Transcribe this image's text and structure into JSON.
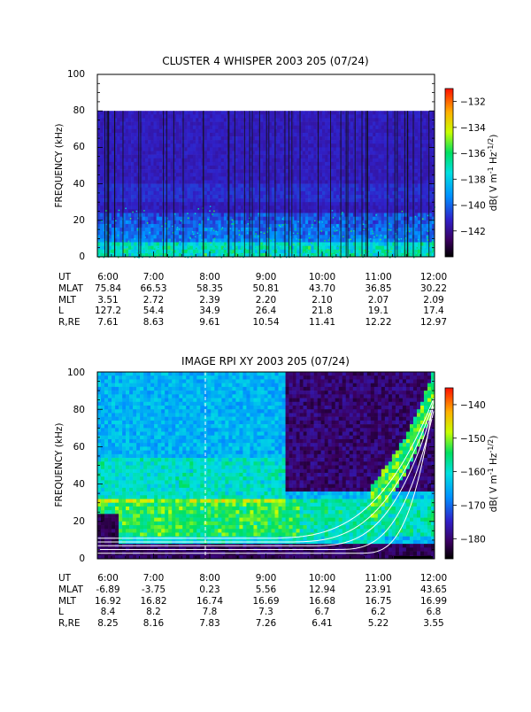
{
  "chart_data": [
    {
      "type": "heatmap",
      "title": "CLUSTER 4 WHISPER 2003 205 (07/24)",
      "ylabel": "FREQUENCY (kHz)",
      "ylim": [
        0,
        100
      ],
      "y_ticks": [
        0,
        20,
        40,
        60,
        80,
        100
      ],
      "data_top_khz": 80,
      "x_ticks": [
        "6:00",
        "7:00",
        "8:00",
        "9:00",
        "10:00",
        "11:00",
        "12:00"
      ],
      "colorbar": {
        "label_prefix": "dB( V m",
        "label_sup1": "-1",
        "label_mid": " Hz",
        "label_sup2": "-1/2",
        "label_suffix": ")",
        "ticks": [
          -132,
          -134,
          -136,
          -138,
          -140,
          -142
        ],
        "range": [
          -144,
          -131
        ]
      },
      "ephemeris": {
        "labels": [
          "UT",
          "MLAT",
          "MLT",
          "L",
          "R,RE"
        ],
        "rows": [
          [
            "6:00",
            "7:00",
            "8:00",
            "9:00",
            "10:00",
            "11:00",
            "12:00"
          ],
          [
            "75.84",
            "66.53",
            "58.35",
            "50.81",
            "43.70",
            "36.85",
            "30.22"
          ],
          [
            "3.51",
            "2.72",
            "2.39",
            "2.20",
            "2.10",
            "2.07",
            "2.09"
          ],
          [
            "127.2",
            "54.4",
            "34.9",
            "26.4",
            "21.8",
            "19.1",
            "17.4"
          ],
          [
            "7.61",
            "8.63",
            "9.61",
            "10.54",
            "11.41",
            "12.22",
            "12.97"
          ]
        ]
      }
    },
    {
      "type": "heatmap",
      "title": "IMAGE RPI XY 2003 205 (07/24)",
      "ylabel": "FREQUENCY (kHz)",
      "ylim": [
        0,
        100
      ],
      "y_ticks": [
        0,
        20,
        40,
        60,
        80,
        100
      ],
      "x_ticks": [
        "6:00",
        "7:00",
        "8:00",
        "9:00",
        "10:00",
        "11:00",
        "12:00"
      ],
      "colorbar": {
        "label_prefix": "dB( V m",
        "label_sup1": "-1",
        "label_mid": " Hz",
        "label_sup2": "-1/2",
        "label_suffix": ")",
        "ticks": [
          -140,
          -150,
          -160,
          -170,
          -180
        ],
        "range": [
          -186,
          -135
        ]
      },
      "ephemeris": {
        "labels": [
          "UT",
          "MLAT",
          "MLT",
          "L",
          "R,RE"
        ],
        "rows": [
          [
            "6:00",
            "7:00",
            "8:00",
            "9:00",
            "10:00",
            "11:00",
            "12:00"
          ],
          [
            "-6.89",
            "-3.75",
            "0.23",
            "5.56",
            "12.94",
            "23.91",
            "43.65"
          ],
          [
            "16.92",
            "16.82",
            "16.74",
            "16.69",
            "16.68",
            "16.75",
            "16.99"
          ],
          [
            "8.4",
            "8.2",
            "7.8",
            "7.3",
            "6.7",
            "6.2",
            "6.8"
          ],
          [
            "8.25",
            "8.16",
            "7.83",
            "7.26",
            "6.41",
            "5.22",
            "3.55"
          ]
        ]
      }
    }
  ]
}
